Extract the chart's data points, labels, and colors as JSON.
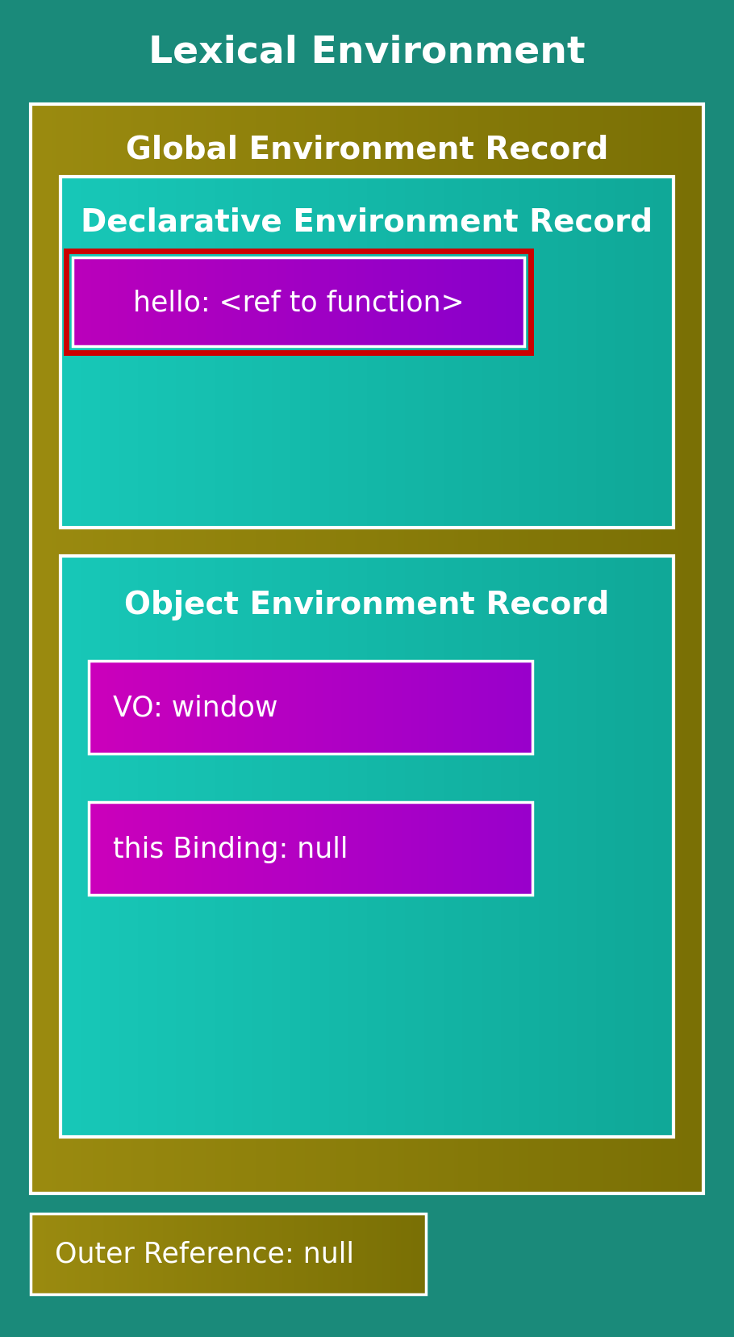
{
  "title": "Lexical Environment",
  "title_color": "#ffffff",
  "bg_color": "#1a8a7a",
  "global_env_color_l": "#9B8B10",
  "global_env_color_r": "#7A7005",
  "declarative_env_color_l": "#18C8B8",
  "declarative_env_color_r": "#10A898",
  "object_env_color_l": "#18C8B8",
  "object_env_color_r": "#10A898",
  "hello_box_color_l": "#BB00BB",
  "hello_box_color_r": "#8800CC",
  "hello_box_highlight": "#cc0000",
  "vo_box_color_l": "#CC00BB",
  "vo_box_color_r": "#9900CC",
  "this_box_color_l": "#CC00BB",
  "this_box_color_r": "#9900CC",
  "outer_box_color_l": "#9B8B10",
  "outer_box_color_r": "#7A7005",
  "text_color": "#ffffff",
  "global_env_label": "Global Environment Record",
  "declarative_env_label": "Declarative Environment Record",
  "object_env_label": "Object Environment Record",
  "hello_label": "hello: <ref to function>",
  "vo_label": "VO: window",
  "this_label": "this Binding: null",
  "outer_label": "Outer Reference: null",
  "font_size_title": 34,
  "font_size_section": 28,
  "font_size_item": 25
}
